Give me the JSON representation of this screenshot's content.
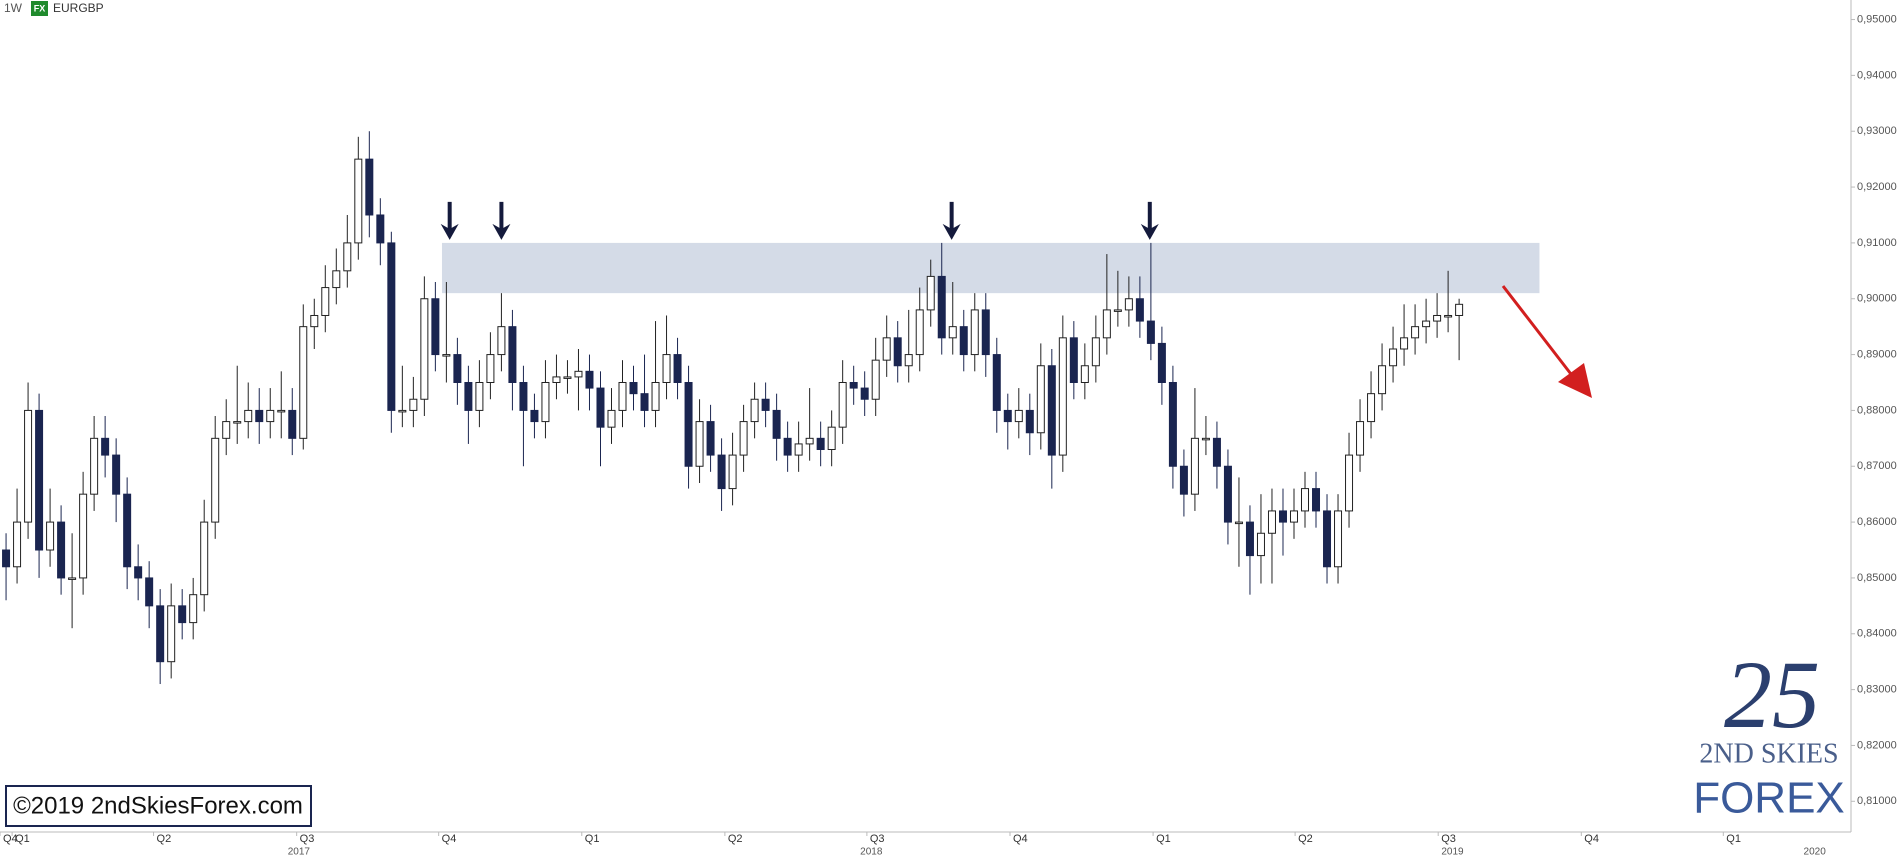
{
  "chart_data": {
    "type": "candlestick",
    "interval": "1W",
    "badge": "FX",
    "symbol": "EURGBP",
    "copyright": "©2019 2ndSkiesForex.com",
    "logo": {
      "mark": "25",
      "line1": "2ND SKIES",
      "line2": "FOREX"
    },
    "up_color": "#ffffff",
    "down_color": "#1a2550",
    "zone_color": "#ccd5e3",
    "resistance_zone": {
      "from": 0.901,
      "to": 0.91,
      "start_index": 39.6,
      "end_index": 139.3
    },
    "ylim": [
      0.8045,
      0.9535
    ],
    "yticks": [
      {
        "value": 0.81,
        "label": "0,81000"
      },
      {
        "value": 0.82,
        "label": "0,82000"
      },
      {
        "value": 0.83,
        "label": "0,83000"
      },
      {
        "value": 0.84,
        "label": "0,84000"
      },
      {
        "value": 0.85,
        "label": "0,85000"
      },
      {
        "value": 0.86,
        "label": "0,86000"
      },
      {
        "value": 0.87,
        "label": "0,87000"
      },
      {
        "value": 0.88,
        "label": "0,88000"
      },
      {
        "value": 0.89,
        "label": "0,89000"
      },
      {
        "value": 0.9,
        "label": "0,90000"
      },
      {
        "value": 0.91,
        "label": "0,91000"
      },
      {
        "value": 0.92,
        "label": "0,92000"
      },
      {
        "value": 0.93,
        "label": "0,93000"
      },
      {
        "value": 0.94,
        "label": "0,94000"
      },
      {
        "value": 0.95,
        "label": "0,95000"
      }
    ],
    "xlim": [
      -0.55,
      167.6
    ],
    "quarter_ticks": [
      {
        "value": -0.55,
        "label": "Q4"
      },
      {
        "value": 0.55,
        "label": "Q1"
      },
      {
        "value": 13.4,
        "label": "Q2"
      },
      {
        "value": 26.4,
        "label": "Q3"
      },
      {
        "value": 39.3,
        "label": "Q4"
      },
      {
        "value": 52.3,
        "label": "Q1"
      },
      {
        "value": 65.3,
        "label": "Q2"
      },
      {
        "value": 78.2,
        "label": "Q3"
      },
      {
        "value": 91.2,
        "label": "Q4"
      },
      {
        "value": 104.2,
        "label": "Q1"
      },
      {
        "value": 117.1,
        "label": "Q2"
      },
      {
        "value": 130.1,
        "label": "Q3"
      },
      {
        "value": 143.1,
        "label": "Q4"
      },
      {
        "value": 156,
        "label": "Q1"
      }
    ],
    "year_ticks": [
      {
        "value": 26.6,
        "label": "2017"
      },
      {
        "value": 78.6,
        "label": "2018"
      },
      {
        "value": 131.4,
        "label": "2019"
      },
      {
        "value": 164.3,
        "label": "2020"
      }
    ],
    "ohlc": [
      [
        0.855,
        0.858,
        0.846,
        0.852
      ],
      [
        0.852,
        0.866,
        0.849,
        0.86
      ],
      [
        0.86,
        0.885,
        0.857,
        0.88
      ],
      [
        0.88,
        0.883,
        0.85,
        0.855
      ],
      [
        0.855,
        0.866,
        0.852,
        0.86
      ],
      [
        0.86,
        0.863,
        0.847,
        0.85
      ],
      [
        0.85,
        0.858,
        0.841,
        0.85
      ],
      [
        0.85,
        0.869,
        0.847,
        0.865
      ],
      [
        0.865,
        0.879,
        0.862,
        0.875
      ],
      [
        0.875,
        0.879,
        0.868,
        0.872
      ],
      [
        0.872,
        0.875,
        0.86,
        0.865
      ],
      [
        0.865,
        0.868,
        0.848,
        0.852
      ],
      [
        0.852,
        0.856,
        0.846,
        0.85
      ],
      [
        0.85,
        0.853,
        0.841,
        0.845
      ],
      [
        0.845,
        0.848,
        0.831,
        0.835
      ],
      [
        0.835,
        0.849,
        0.832,
        0.845
      ],
      [
        0.845,
        0.848,
        0.839,
        0.842
      ],
      [
        0.842,
        0.85,
        0.839,
        0.847
      ],
      [
        0.847,
        0.864,
        0.844,
        0.86
      ],
      [
        0.86,
        0.879,
        0.857,
        0.875
      ],
      [
        0.875,
        0.882,
        0.872,
        0.878
      ],
      [
        0.878,
        0.888,
        0.874,
        0.878
      ],
      [
        0.878,
        0.885,
        0.875,
        0.88
      ],
      [
        0.88,
        0.884,
        0.874,
        0.878
      ],
      [
        0.878,
        0.884,
        0.875,
        0.88
      ],
      [
        0.88,
        0.887,
        0.875,
        0.88
      ],
      [
        0.88,
        0.884,
        0.872,
        0.875
      ],
      [
        0.875,
        0.899,
        0.873,
        0.895
      ],
      [
        0.895,
        0.9,
        0.891,
        0.897
      ],
      [
        0.897,
        0.906,
        0.894,
        0.902
      ],
      [
        0.902,
        0.909,
        0.899,
        0.905
      ],
      [
        0.905,
        0.915,
        0.902,
        0.91
      ],
      [
        0.91,
        0.929,
        0.907,
        0.925
      ],
      [
        0.925,
        0.93,
        0.911,
        0.915
      ],
      [
        0.915,
        0.918,
        0.906,
        0.91
      ],
      [
        0.91,
        0.912,
        0.876,
        0.88
      ],
      [
        0.88,
        0.888,
        0.877,
        0.88
      ],
      [
        0.88,
        0.886,
        0.877,
        0.882
      ],
      [
        0.882,
        0.904,
        0.879,
        0.9
      ],
      [
        0.9,
        0.903,
        0.887,
        0.89
      ],
      [
        0.89,
        0.903,
        0.885,
        0.89
      ],
      [
        0.89,
        0.893,
        0.881,
        0.885
      ],
      [
        0.885,
        0.888,
        0.874,
        0.88
      ],
      [
        0.88,
        0.889,
        0.877,
        0.885
      ],
      [
        0.885,
        0.894,
        0.882,
        0.89
      ],
      [
        0.89,
        0.901,
        0.887,
        0.895
      ],
      [
        0.895,
        0.898,
        0.88,
        0.885
      ],
      [
        0.885,
        0.888,
        0.87,
        0.88
      ],
      [
        0.88,
        0.883,
        0.875,
        0.878
      ],
      [
        0.878,
        0.889,
        0.875,
        0.885
      ],
      [
        0.885,
        0.89,
        0.882,
        0.886
      ],
      [
        0.886,
        0.889,
        0.883,
        0.886
      ],
      [
        0.886,
        0.891,
        0.88,
        0.887
      ],
      [
        0.887,
        0.89,
        0.88,
        0.884
      ],
      [
        0.884,
        0.887,
        0.87,
        0.877
      ],
      [
        0.877,
        0.884,
        0.874,
        0.88
      ],
      [
        0.88,
        0.889,
        0.877,
        0.885
      ],
      [
        0.885,
        0.888,
        0.88,
        0.883
      ],
      [
        0.883,
        0.89,
        0.877,
        0.88
      ],
      [
        0.88,
        0.896,
        0.877,
        0.885
      ],
      [
        0.885,
        0.897,
        0.882,
        0.89
      ],
      [
        0.89,
        0.893,
        0.882,
        0.885
      ],
      [
        0.885,
        0.888,
        0.866,
        0.87
      ],
      [
        0.87,
        0.882,
        0.867,
        0.878
      ],
      [
        0.878,
        0.881,
        0.869,
        0.872
      ],
      [
        0.872,
        0.875,
        0.862,
        0.866
      ],
      [
        0.866,
        0.876,
        0.863,
        0.872
      ],
      [
        0.872,
        0.881,
        0.869,
        0.878
      ],
      [
        0.878,
        0.885,
        0.875,
        0.882
      ],
      [
        0.882,
        0.885,
        0.877,
        0.88
      ],
      [
        0.88,
        0.883,
        0.871,
        0.875
      ],
      [
        0.875,
        0.878,
        0.869,
        0.872
      ],
      [
        0.872,
        0.878,
        0.869,
        0.874
      ],
      [
        0.874,
        0.884,
        0.871,
        0.875
      ],
      [
        0.875,
        0.878,
        0.87,
        0.873
      ],
      [
        0.873,
        0.88,
        0.87,
        0.877
      ],
      [
        0.877,
        0.889,
        0.874,
        0.885
      ],
      [
        0.885,
        0.888,
        0.881,
        0.884
      ],
      [
        0.884,
        0.887,
        0.879,
        0.882
      ],
      [
        0.882,
        0.893,
        0.879,
        0.889
      ],
      [
        0.889,
        0.897,
        0.886,
        0.893
      ],
      [
        0.893,
        0.896,
        0.885,
        0.888
      ],
      [
        0.888,
        0.898,
        0.885,
        0.89
      ],
      [
        0.89,
        0.902,
        0.887,
        0.898
      ],
      [
        0.898,
        0.907,
        0.895,
        0.904
      ],
      [
        0.904,
        0.91,
        0.89,
        0.893
      ],
      [
        0.893,
        0.903,
        0.89,
        0.895
      ],
      [
        0.895,
        0.898,
        0.887,
        0.89
      ],
      [
        0.89,
        0.901,
        0.887,
        0.898
      ],
      [
        0.898,
        0.901,
        0.886,
        0.89
      ],
      [
        0.89,
        0.893,
        0.876,
        0.88
      ],
      [
        0.88,
        0.883,
        0.873,
        0.878
      ],
      [
        0.878,
        0.884,
        0.875,
        0.88
      ],
      [
        0.88,
        0.883,
        0.872,
        0.876
      ],
      [
        0.876,
        0.892,
        0.873,
        0.888
      ],
      [
        0.888,
        0.891,
        0.866,
        0.872
      ],
      [
        0.872,
        0.897,
        0.869,
        0.893
      ],
      [
        0.893,
        0.896,
        0.882,
        0.885
      ],
      [
        0.885,
        0.892,
        0.882,
        0.888
      ],
      [
        0.888,
        0.897,
        0.885,
        0.893
      ],
      [
        0.893,
        0.908,
        0.89,
        0.898
      ],
      [
        0.898,
        0.905,
        0.895,
        0.898
      ],
      [
        0.898,
        0.904,
        0.895,
        0.9
      ],
      [
        0.9,
        0.904,
        0.893,
        0.896
      ],
      [
        0.896,
        0.91,
        0.889,
        0.892
      ],
      [
        0.892,
        0.895,
        0.881,
        0.885
      ],
      [
        0.885,
        0.888,
        0.866,
        0.87
      ],
      [
        0.87,
        0.873,
        0.861,
        0.865
      ],
      [
        0.865,
        0.884,
        0.862,
        0.875
      ],
      [
        0.875,
        0.879,
        0.872,
        0.875
      ],
      [
        0.875,
        0.878,
        0.866,
        0.87
      ],
      [
        0.87,
        0.873,
        0.856,
        0.86
      ],
      [
        0.86,
        0.868,
        0.852,
        0.86
      ],
      [
        0.86,
        0.863,
        0.847,
        0.854
      ],
      [
        0.854,
        0.865,
        0.849,
        0.858
      ],
      [
        0.858,
        0.866,
        0.849,
        0.862
      ],
      [
        0.862,
        0.866,
        0.854,
        0.86
      ],
      [
        0.86,
        0.866,
        0.857,
        0.862
      ],
      [
        0.862,
        0.869,
        0.859,
        0.866
      ],
      [
        0.866,
        0.869,
        0.859,
        0.862
      ],
      [
        0.862,
        0.865,
        0.849,
        0.852
      ],
      [
        0.852,
        0.865,
        0.849,
        0.862
      ],
      [
        0.862,
        0.876,
        0.859,
        0.872
      ],
      [
        0.872,
        0.882,
        0.869,
        0.878
      ],
      [
        0.878,
        0.887,
        0.875,
        0.883
      ],
      [
        0.883,
        0.892,
        0.88,
        0.888
      ],
      [
        0.888,
        0.895,
        0.885,
        0.891
      ],
      [
        0.891,
        0.899,
        0.888,
        0.893
      ],
      [
        0.893,
        0.899,
        0.89,
        0.895
      ],
      [
        0.895,
        0.9,
        0.892,
        0.896
      ],
      [
        0.896,
        0.901,
        0.893,
        0.897
      ],
      [
        0.897,
        0.905,
        0.894,
        0.897
      ],
      [
        0.897,
        0.9,
        0.889,
        0.899
      ]
    ]
  }
}
